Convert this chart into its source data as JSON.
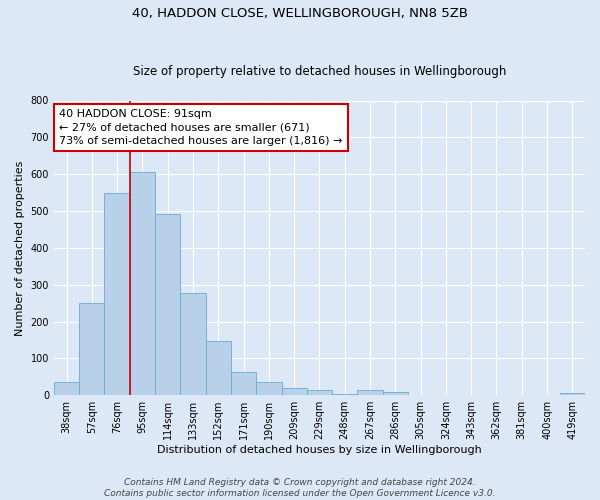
{
  "title": "40, HADDON CLOSE, WELLINGBOROUGH, NN8 5ZB",
  "subtitle": "Size of property relative to detached houses in Wellingborough",
  "xlabel": "Distribution of detached houses by size in Wellingborough",
  "ylabel": "Number of detached properties",
  "bar_labels": [
    "38sqm",
    "57sqm",
    "76sqm",
    "95sqm",
    "114sqm",
    "133sqm",
    "152sqm",
    "171sqm",
    "190sqm",
    "209sqm",
    "229sqm",
    "248sqm",
    "267sqm",
    "286sqm",
    "305sqm",
    "324sqm",
    "343sqm",
    "362sqm",
    "381sqm",
    "400sqm",
    "419sqm"
  ],
  "bar_values": [
    35,
    250,
    548,
    605,
    493,
    278,
    148,
    62,
    35,
    20,
    15,
    3,
    15,
    10,
    1,
    1,
    1,
    1,
    1,
    1,
    5
  ],
  "bar_color": "#b8d0e8",
  "bar_edge_color": "#6aaad4",
  "vline_x_index": 3,
  "vline_color": "#cc0000",
  "annotation_line1": "40 HADDON CLOSE: 91sqm",
  "annotation_line2": "← 27% of detached houses are smaller (671)",
  "annotation_line3": "73% of semi-detached houses are larger (1,816) →",
  "annotation_box_color": "#cc0000",
  "annotation_box_facecolor": "white",
  "footer_line1": "Contains HM Land Registry data © Crown copyright and database right 2024.",
  "footer_line2": "Contains public sector information licensed under the Open Government Licence v3.0.",
  "background_color": "#dce8f5",
  "plot_background_color": "#dce8f5",
  "ylim": [
    0,
    800
  ],
  "yticks": [
    0,
    100,
    200,
    300,
    400,
    500,
    600,
    700,
    800
  ],
  "title_fontsize": 9.5,
  "subtitle_fontsize": 8.5,
  "xlabel_fontsize": 8,
  "ylabel_fontsize": 8,
  "tick_fontsize": 7,
  "annotation_fontsize": 8,
  "footer_fontsize": 6.5
}
